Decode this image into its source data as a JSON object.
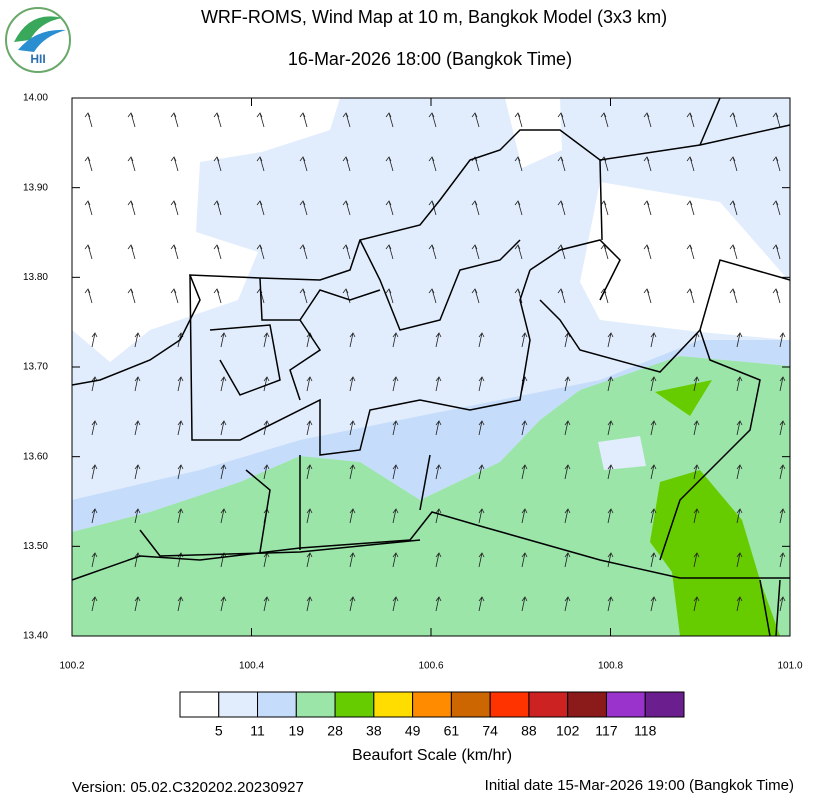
{
  "header": {
    "title": "WRF-ROMS, Wind Map at 10 m, Bangkok Model (3x3 km)",
    "subtitle": "16-Mar-2026 18:00 (Bangkok Time)",
    "logo_text": "HII"
  },
  "map": {
    "xlim": [
      100.2,
      101.0
    ],
    "ylim": [
      13.4,
      14.0
    ],
    "xticks": [
      100.2,
      100.4,
      100.6,
      100.8,
      {
        "value": 101,
        "label": "101.0"
      }
    ],
    "yticks": [
      {
        "value": 13.4,
        "label": "13.40"
      },
      {
        "value": 13.5,
        "label": "13.50"
      },
      {
        "value": 13.6,
        "label": "13.60"
      },
      {
        "value": 13.7,
        "label": "13.70"
      },
      {
        "value": 13.8,
        "label": "13.80"
      },
      {
        "value": 13.9,
        "label": "13.90"
      },
      {
        "value": 14,
        "label": "14.00"
      }
    ]
  },
  "colorbar": {
    "title": "Beaufort Scale (km/hr)",
    "colors": [
      "#ffffff",
      "#e1edfd",
      "#c5dcfb",
      "#9be5a9",
      "#66cc00",
      "#ffdd00",
      "#ff8c00",
      "#cc6600",
      "#ff3300",
      "#cc2222",
      "#8b1a1a",
      "#9933cc",
      "#6b1f8f"
    ],
    "labels": [
      5,
      11,
      19,
      28,
      38,
      49,
      61,
      74,
      88,
      102,
      117,
      118
    ]
  },
  "footer": {
    "version": "Version: 05.02.C320202.20230927",
    "initial": "Initial date 15-Mar-2026 19:00 (Bangkok Time)"
  }
}
